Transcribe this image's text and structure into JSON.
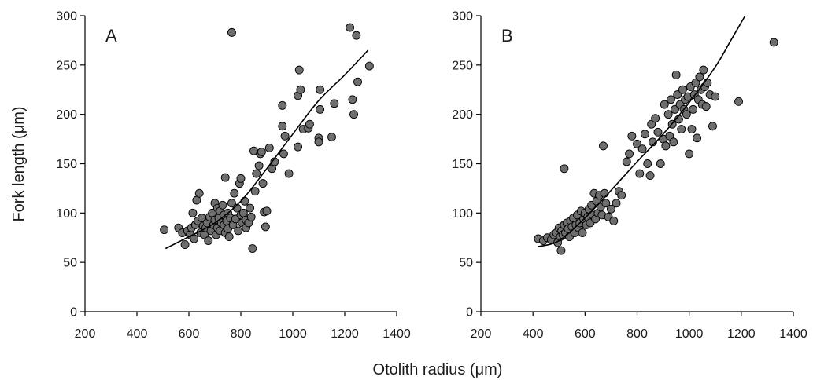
{
  "figure": {
    "ylabel": "Fork length (μm)",
    "xlabel": "Otolith radius (μm)",
    "point_color": "#6e6e6e",
    "point_edge": "#000000",
    "line_color": "#000000"
  },
  "chart_data": [
    {
      "type": "scatter",
      "panel_label": "A",
      "xlim": [
        200,
        1400
      ],
      "ylim": [
        0,
        300
      ],
      "xticks": [
        200,
        400,
        600,
        800,
        1000,
        1200,
        1400
      ],
      "yticks": [
        0,
        50,
        100,
        150,
        200,
        250,
        300
      ],
      "grid": false,
      "series": [
        {
          "kind": "points",
          "points": [
            [
              505,
              83
            ],
            [
              560,
              85
            ],
            [
              575,
              80
            ],
            [
              585,
              68
            ],
            [
              595,
              82
            ],
            [
              605,
              78
            ],
            [
              610,
              85
            ],
            [
              615,
              100
            ],
            [
              620,
              74
            ],
            [
              625,
              88
            ],
            [
              630,
              113
            ],
            [
              635,
              92
            ],
            [
              640,
              120
            ],
            [
              645,
              80
            ],
            [
              650,
              95
            ],
            [
              655,
              87
            ],
            [
              660,
              78
            ],
            [
              665,
              85
            ],
            [
              670,
              90
            ],
            [
              675,
              72
            ],
            [
              680,
              96
            ],
            [
              685,
              82
            ],
            [
              690,
              100
            ],
            [
              695,
              88
            ],
            [
              700,
              110
            ],
            [
              700,
              93
            ],
            [
              705,
              78
            ],
            [
              710,
              105
            ],
            [
              710,
              85
            ],
            [
              715,
              95
            ],
            [
              720,
              102
            ],
            [
              720,
              82
            ],
            [
              725,
              90
            ],
            [
              730,
              108
            ],
            [
              735,
              88
            ],
            [
              735,
              98
            ],
            [
              740,
              136
            ],
            [
              740,
              80
            ],
            [
              745,
              92
            ],
            [
              750,
              84
            ],
            [
              750,
              100
            ],
            [
              755,
              76
            ],
            [
              760,
              95
            ],
            [
              765,
              283
            ],
            [
              765,
              110
            ],
            [
              770,
              88
            ],
            [
              775,
              120
            ],
            [
              780,
              94
            ],
            [
              785,
              105
            ],
            [
              790,
              82
            ],
            [
              795,
              130
            ],
            [
              800,
              135
            ],
            [
              800,
              98
            ],
            [
              805,
              90
            ],
            [
              810,
              100
            ],
            [
              815,
              112
            ],
            [
              820,
              85
            ],
            [
              820,
              93
            ],
            [
              830,
              90
            ],
            [
              835,
              105
            ],
            [
              840,
              96
            ],
            [
              845,
              64
            ],
            [
              850,
              163
            ],
            [
              855,
              122
            ],
            [
              860,
              140
            ],
            [
              870,
              148
            ],
            [
              875,
              160
            ],
            [
              880,
              162
            ],
            [
              885,
              130
            ],
            [
              890,
              101
            ],
            [
              895,
              86
            ],
            [
              900,
              102
            ],
            [
              910,
              166
            ],
            [
              920,
              145
            ],
            [
              930,
              152
            ],
            [
              960,
              209
            ],
            [
              960,
              188
            ],
            [
              965,
              160
            ],
            [
              970,
              178
            ],
            [
              985,
              140
            ],
            [
              1020,
              167
            ],
            [
              1020,
              219
            ],
            [
              1025,
              245
            ],
            [
              1030,
              225
            ],
            [
              1040,
              185
            ],
            [
              1060,
              186
            ],
            [
              1065,
              190
            ],
            [
              1100,
              176
            ],
            [
              1100,
              172
            ],
            [
              1105,
              225
            ],
            [
              1105,
              205
            ],
            [
              1150,
              177
            ],
            [
              1160,
              211
            ],
            [
              1220,
              288
            ],
            [
              1230,
              215
            ],
            [
              1235,
              200
            ],
            [
              1245,
              280
            ],
            [
              1250,
              233
            ],
            [
              1295,
              249
            ]
          ]
        },
        {
          "kind": "fit",
          "points": [
            [
              510,
              64
            ],
            [
              600,
              76
            ],
            [
              700,
              90
            ],
            [
              800,
              112
            ],
            [
              900,
              145
            ],
            [
              1000,
              180
            ],
            [
              1100,
              214
            ],
            [
              1200,
              240
            ],
            [
              1290,
              265
            ]
          ]
        }
      ]
    },
    {
      "type": "scatter",
      "panel_label": "B",
      "xlim": [
        200,
        1400
      ],
      "ylim": [
        0,
        300
      ],
      "xticks": [
        200,
        400,
        600,
        800,
        1000,
        1200,
        1400
      ],
      "yticks": [
        0,
        50,
        100,
        150,
        200,
        250,
        300
      ],
      "grid": false,
      "series": [
        {
          "kind": "points",
          "points": [
            [
              420,
              74
            ],
            [
              440,
              72
            ],
            [
              455,
              75
            ],
            [
              470,
              73
            ],
            [
              480,
              78
            ],
            [
              490,
              80
            ],
            [
              495,
              70
            ],
            [
              500,
              85
            ],
            [
              505,
              76
            ],
            [
              508,
              62
            ],
            [
              510,
              82
            ],
            [
              515,
              78
            ],
            [
              520,
              145
            ],
            [
              520,
              88
            ],
            [
              525,
              80
            ],
            [
              530,
              90
            ],
            [
              535,
              84
            ],
            [
              540,
              76
            ],
            [
              545,
              92
            ],
            [
              550,
              86
            ],
            [
              555,
              95
            ],
            [
              560,
              80
            ],
            [
              565,
              88
            ],
            [
              570,
              98
            ],
            [
              575,
              85
            ],
            [
              580,
              90
            ],
            [
              585,
              102
            ],
            [
              590,
              80
            ],
            [
              595,
              94
            ],
            [
              600,
              100
            ],
            [
              605,
              88
            ],
            [
              610,
              96
            ],
            [
              615,
              104
            ],
            [
              620,
              90
            ],
            [
              625,
              108
            ],
            [
              630,
              98
            ],
            [
              635,
              120
            ],
            [
              640,
              94
            ],
            [
              645,
              112
            ],
            [
              650,
              100
            ],
            [
              655,
              118
            ],
            [
              660,
              106
            ],
            [
              665,
              98
            ],
            [
              670,
              168
            ],
            [
              675,
              120
            ],
            [
              680,
              110
            ],
            [
              690,
              96
            ],
            [
              700,
              104
            ],
            [
              710,
              92
            ],
            [
              720,
              110
            ],
            [
              730,
              122
            ],
            [
              740,
              118
            ],
            [
              760,
              152
            ],
            [
              770,
              160
            ],
            [
              780,
              178
            ],
            [
              800,
              170
            ],
            [
              810,
              140
            ],
            [
              820,
              165
            ],
            [
              830,
              180
            ],
            [
              840,
              150
            ],
            [
              850,
              138
            ],
            [
              855,
              190
            ],
            [
              860,
              172
            ],
            [
              870,
              196
            ],
            [
              880,
              182
            ],
            [
              890,
              150
            ],
            [
              900,
              175
            ],
            [
              905,
              210
            ],
            [
              910,
              168
            ],
            [
              920,
              200
            ],
            [
              925,
              178
            ],
            [
              930,
              215
            ],
            [
              935,
              190
            ],
            [
              940,
              172
            ],
            [
              945,
              205
            ],
            [
              950,
              240
            ],
            [
              955,
              220
            ],
            [
              960,
              195
            ],
            [
              965,
              210
            ],
            [
              970,
              185
            ],
            [
              975,
              225
            ],
            [
              980,
              205
            ],
            [
              985,
              215
            ],
            [
              990,
              200
            ],
            [
              995,
              218
            ],
            [
              1000,
              160
            ],
            [
              1005,
              228
            ],
            [
              1010,
              185
            ],
            [
              1015,
              205
            ],
            [
              1020,
              220
            ],
            [
              1025,
              232
            ],
            [
              1030,
              176
            ],
            [
              1035,
              215
            ],
            [
              1040,
              238
            ],
            [
              1045,
              225
            ],
            [
              1050,
              210
            ],
            [
              1055,
              245
            ],
            [
              1060,
              228
            ],
            [
              1065,
              208
            ],
            [
              1070,
              232
            ],
            [
              1080,
              220
            ],
            [
              1090,
              188
            ],
            [
              1100,
              218
            ],
            [
              1190,
              213
            ],
            [
              1325,
              273
            ]
          ]
        },
        {
          "kind": "fit",
          "points": [
            [
              420,
              66
            ],
            [
              500,
              72
            ],
            [
              600,
              95
            ],
            [
              700,
              123
            ],
            [
              800,
              152
            ],
            [
              900,
              180
            ],
            [
              1000,
              212
            ],
            [
              1100,
              248
            ],
            [
              1160,
              275
            ],
            [
              1215,
              300
            ]
          ]
        }
      ]
    }
  ]
}
